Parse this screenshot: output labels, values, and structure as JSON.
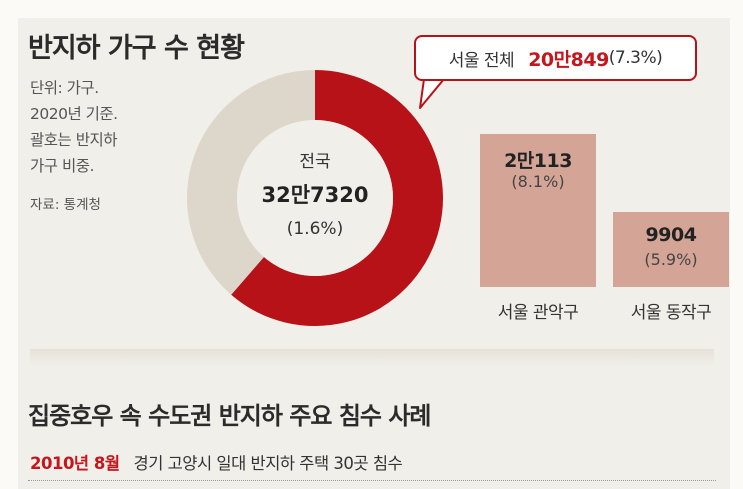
{
  "title": "반지하 가구 수 현황",
  "notes": [
    "단위: 가구.",
    "2020년 기준.",
    "괄호는 반지하",
    "가구 비중."
  ],
  "source": "자료: 통계청",
  "chart_data": [
    {
      "type": "pie",
      "donut": true,
      "center": {
        "label": "전국",
        "value": "32만7320",
        "pct": "(1.6%)"
      },
      "total": 327320,
      "slices": [
        {
          "name": "서울 전체",
          "value": 200849,
          "color": "#b81219"
        },
        {
          "name": "",
          "value": 126471,
          "color": "#ddd6cb"
        }
      ],
      "callout": {
        "label": "서울 전체",
        "value": "20만849",
        "pct": "(7.3%)"
      }
    },
    {
      "type": "bar",
      "categories": [
        "서울 관악구",
        "서울 동작구"
      ],
      "values": [
        20113,
        9904
      ],
      "value_labels": [
        "2만113",
        "9904"
      ],
      "pct_labels": [
        "(8.1%)",
        "(5.9%)"
      ],
      "color": "#d4a596"
    }
  ],
  "section2": {
    "title": "집중호우 속 수도권 반지하 주요 침수 사례",
    "cases": [
      {
        "date": "2010년 8월",
        "desc": "경기 고양시 일대 반지하 주택 30곳 침수"
      }
    ]
  }
}
